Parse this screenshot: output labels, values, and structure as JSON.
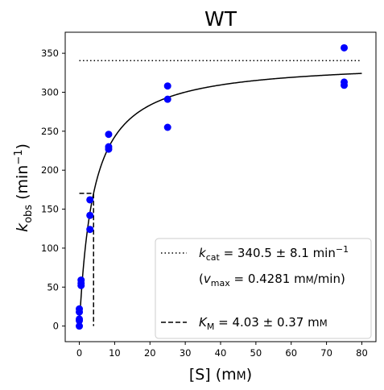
{
  "chart_data": {
    "type": "scatter",
    "title": "WT",
    "xlabel": {
      "main": "[S] (m",
      "small_caps": "M",
      "close": ")"
    },
    "ylabel": {
      "k": "k",
      "sub": "obs",
      "unit_open": " (min",
      "sup": "−1",
      "unit_close": ")"
    },
    "xlim": [
      -4,
      84
    ],
    "ylim": [
      -20,
      377
    ],
    "xticks": [
      0,
      10,
      20,
      30,
      40,
      50,
      60,
      70,
      80
    ],
    "yticks": [
      0,
      50,
      100,
      150,
      200,
      250,
      300,
      350
    ],
    "grid": false,
    "legend_position": "lower-right",
    "point_color": "#0000ff",
    "points": [
      {
        "x": 0,
        "y": 0
      },
      {
        "x": 0,
        "y": 7
      },
      {
        "x": 0,
        "y": 9
      },
      {
        "x": 0,
        "y": 18
      },
      {
        "x": 0,
        "y": 22
      },
      {
        "x": 0.5,
        "y": 52
      },
      {
        "x": 0.5,
        "y": 55
      },
      {
        "x": 0.5,
        "y": 59
      },
      {
        "x": 3,
        "y": 124
      },
      {
        "x": 3,
        "y": 142
      },
      {
        "x": 3,
        "y": 162
      },
      {
        "x": 8.3,
        "y": 227
      },
      {
        "x": 8.3,
        "y": 230
      },
      {
        "x": 8.3,
        "y": 246
      },
      {
        "x": 25,
        "y": 255
      },
      {
        "x": 25,
        "y": 291
      },
      {
        "x": 25,
        "y": 308
      },
      {
        "x": 75,
        "y": 309
      },
      {
        "x": 75,
        "y": 313
      },
      {
        "x": 75,
        "y": 357
      }
    ],
    "fit": {
      "kcat": 340.5,
      "KM": 4.03,
      "x_range": [
        0,
        80
      ]
    },
    "kcat_line": {
      "y": 340.5,
      "x_range": [
        0,
        80
      ]
    },
    "km_marker": {
      "x": 4.03,
      "y": 170.25
    },
    "legend": [
      {
        "style": "dotted",
        "parts": [
          {
            "t": "k",
            "i": true
          },
          {
            "t": "cat",
            "sub": true
          },
          {
            "t": " = 340.5 ± 8.1 min"
          },
          {
            "t": "−1",
            "sup": true
          }
        ]
      },
      {
        "style": "none",
        "parts": [
          {
            "t": "("
          },
          {
            "t": "v",
            "i": true
          },
          {
            "t": "max",
            "sub": true
          },
          {
            "t": " = 0.4281 m"
          },
          {
            "t": "M",
            "sc": true
          },
          {
            "t": "/min)"
          }
        ]
      },
      {
        "style": "dashed",
        "parts": [
          {
            "t": "K",
            "i": true
          },
          {
            "t": "M",
            "sub": true
          },
          {
            "t": " = 4.03 ± 0.37 m"
          },
          {
            "t": "M",
            "sc": true
          }
        ]
      }
    ]
  }
}
